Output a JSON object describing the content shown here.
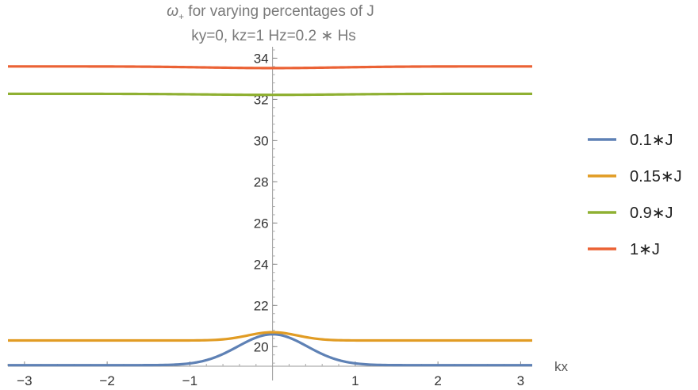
{
  "chart_data": {
    "type": "line",
    "title_symbol": "ω",
    "title_subscript": "+",
    "title_rest": " for varying percentages of J",
    "subtitle": "ky=0, kz=1 Hz=0.2 ∗ Hs",
    "xlabel": "kx",
    "ylabel": "",
    "xlim": [
      -3.2,
      3.14
    ],
    "ylim": [
      19.05,
      34.4
    ],
    "x_ticks": [
      -3,
      -2,
      -1,
      1,
      2,
      3
    ],
    "x_tick_labels": [
      "−3",
      "−2",
      "−1",
      "1",
      "2",
      "3"
    ],
    "y_ticks": [
      20,
      22,
      24,
      26,
      28,
      30,
      32,
      34
    ],
    "y_tick_labels": [
      "20",
      "22",
      "24",
      "26",
      "28",
      "30",
      "32",
      "34"
    ],
    "grid": false,
    "legend_position": "right",
    "series": [
      {
        "name": "0.1∗J",
        "color": "#5E81B5",
        "base": 19.1,
        "peak": 20.6,
        "width": 0.42
      },
      {
        "name": "0.15∗J",
        "color": "#E19C24",
        "base": 20.3,
        "peak": 20.7,
        "width": 0.3
      },
      {
        "name": "0.9∗J",
        "color": "#8FB032",
        "base": 32.27,
        "peak": 32.22,
        "width": 0.8
      },
      {
        "name": "1∗J",
        "color": "#EB6235",
        "base": 33.6,
        "peak": 33.52,
        "width": 0.8
      }
    ]
  }
}
